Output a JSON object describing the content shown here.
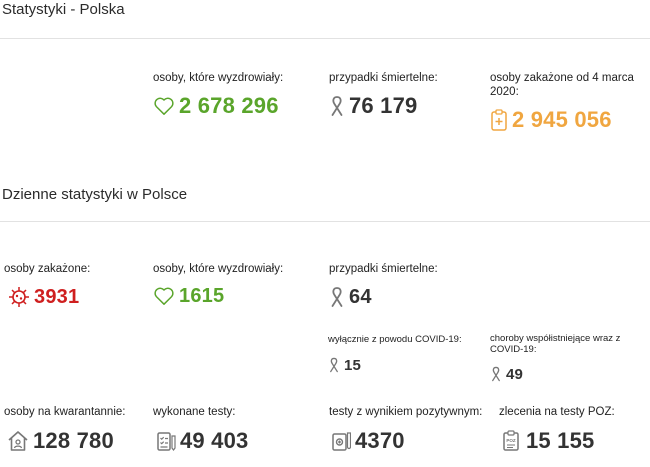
{
  "poland": {
    "title": "Statystyki - Polska",
    "recovered": {
      "label": "osoby, które wyzdrowiały:",
      "value": "2 678 296"
    },
    "deaths": {
      "label": "przypadki śmiertelne:",
      "value": "76 179"
    },
    "infected_since": {
      "label": "osoby zakażone od 4 marca 2020:",
      "value": "2 945 056"
    }
  },
  "daily": {
    "title": "Dzienne statystyki w Polsce",
    "infected": {
      "label": "osoby zakażone:",
      "value": "3931"
    },
    "recovered": {
      "label": "osoby, które wyzdrowiały:",
      "value": "1615"
    },
    "deaths": {
      "label": "przypadki śmiertelne:",
      "value": "64"
    },
    "deaths_covid_only": {
      "label": "wyłącznie z powodu COVID-19:",
      "value": "15"
    },
    "deaths_comorbid": {
      "label": "choroby współistniejące wraz z COVID-19:",
      "value": "49"
    },
    "quarantine": {
      "label": "osoby na kwarantannie:",
      "value": "128 780"
    },
    "tests": {
      "label": "wykonane testy:",
      "value": "49 403"
    },
    "positive_tests": {
      "label": "testy z wynikiem pozytywnym:",
      "value": "4370"
    },
    "poz_orders": {
      "label": "zlecenia na testy POZ:",
      "value": "15 155"
    }
  },
  "colors": {
    "green": "#5aa52b",
    "red": "#cf1f1f",
    "orange": "#f0a640",
    "dark": "#333333",
    "icon_gray": "#777777"
  },
  "icons": {
    "recovered": "heart-icon",
    "deaths": "ribbon-icon",
    "infected_since": "clipboard-icon",
    "infected": "virus-icon",
    "quarantine": "house-icon",
    "tests": "checklist-icon",
    "positive_tests": "test-tube-icon",
    "poz_orders": "poz-clipboard-icon"
  }
}
